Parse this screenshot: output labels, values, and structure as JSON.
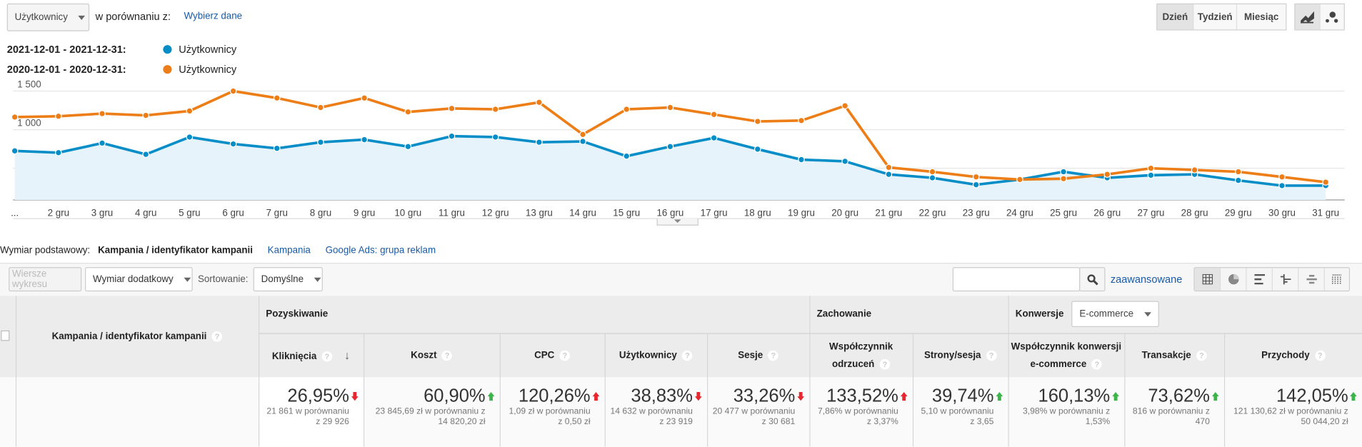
{
  "header": {
    "metric_select": "Użytkownicy",
    "compare_label": "w porównaniu z:",
    "choose_data": "Wybierz dane",
    "period_buttons": [
      "Dzień",
      "Tydzień",
      "Miesiąc"
    ],
    "active_period": "Dzień"
  },
  "legend": [
    {
      "range": "2021-12-01 - 2021-12-31:",
      "label": "Użytkownicy",
      "color": "#058dc7"
    },
    {
      "range": "2020-12-01 - 2020-12-31:",
      "label": "Użytkownicy",
      "color": "#ed7e17"
    }
  ],
  "chart_data": {
    "type": "line",
    "title": "",
    "xlabel": "",
    "ylabel": "Użytkownicy",
    "ylim": [
      0,
      1500
    ],
    "yticks": [
      "1 500",
      "1 000",
      "500"
    ],
    "ytick_values": [
      1500,
      1000,
      500
    ],
    "x": [
      "...",
      "2 gru",
      "3 gru",
      "4 gru",
      "5 gru",
      "6 gru",
      "7 gru",
      "8 gru",
      "9 gru",
      "10 gru",
      "11 gru",
      "12 gru",
      "13 gru",
      "14 gru",
      "15 gru",
      "16 gru",
      "17 gru",
      "18 gru",
      "19 gru",
      "20 gru",
      "21 gru",
      "22 gru",
      "23 gru",
      "24 gru",
      "25 gru",
      "26 gru",
      "27 gru",
      "28 gru",
      "29 gru",
      "30 gru",
      "31 gru"
    ],
    "series": [
      {
        "name": "2021-12-01 - 2021-12-31: Użytkownicy",
        "color": "#058dc7",
        "values": [
          725,
          702,
          826,
          680,
          904,
          815,
          758,
          837,
          871,
          781,
          916,
          904,
          837,
          848,
          657,
          781,
          893,
          747,
          612,
          590,
          421,
          376,
          287,
          354,
          455,
          376,
          410,
          421,
          343,
          275,
          275
        ]
      },
      {
        "name": "2020-12-01 - 2020-12-31: Użytkownicy",
        "color": "#ed7e17",
        "values": [
          1163,
          1174,
          1208,
          1185,
          1242,
          1500,
          1410,
          1287,
          1410,
          1230,
          1275,
          1264,
          1354,
          938,
          1264,
          1287,
          1197,
          1107,
          1118,
          1309,
          511,
          455,
          388,
          354,
          365,
          421,
          500,
          478,
          455,
          388,
          320
        ]
      }
    ]
  },
  "dimension": {
    "label": "Wymiar podstawowy:",
    "active": "Kampania / identyfikator kampanii",
    "options": [
      "Kampania",
      "Google Ads: grupa reklam"
    ]
  },
  "toolbar": {
    "plot_rows": "Wiersze wykresu",
    "secondary": "Wymiar dodatkowy",
    "sort_label": "Sortowanie:",
    "sort_value": "Domyślne",
    "search_value": "",
    "advanced": "zaawansowane"
  },
  "table": {
    "dimension_header": "Kampania / identyfikator kampanii",
    "groups": [
      "Pozyskiwanie",
      "Zachowanie",
      "Konwersje"
    ],
    "conv_select": "E-commerce",
    "columns": [
      {
        "name": "Kliknięcia",
        "pct": "26,95%",
        "dir": "down",
        "good": false,
        "detail": "21 861 w porównaniu z 29 926"
      },
      {
        "name": "Koszt",
        "pct": "60,90%",
        "dir": "up",
        "good": true,
        "detail": "23 845,69 zł w porównaniu z 14 820,20 zł"
      },
      {
        "name": "CPC",
        "pct": "120,26%",
        "dir": "up",
        "good": false,
        "detail": "1,09 zł w porównaniu z 0,50 zł"
      },
      {
        "name": "Użytkownicy",
        "pct": "38,83%",
        "dir": "down",
        "good": false,
        "detail": "14 632 w porównaniu z 23 919"
      },
      {
        "name": "Sesje",
        "pct": "33,26%",
        "dir": "down",
        "good": false,
        "detail": "20 477 w porównaniu z 30 681"
      },
      {
        "name": "Współczynnik odrzuceń",
        "pct": "133,52%",
        "dir": "up",
        "good": false,
        "detail": "7,86% w porównaniu z 3,37%"
      },
      {
        "name": "Strony/sesja",
        "pct": "39,74%",
        "dir": "up",
        "good": true,
        "detail": "5,10 w porównaniu z 3,65"
      },
      {
        "name": "Współczynnik konwersji e-commerce",
        "pct": "160,13%",
        "dir": "up",
        "good": true,
        "detail": "3,98% w porównaniu z 1,53%"
      },
      {
        "name": "Transakcje",
        "pct": "73,62%",
        "dir": "up",
        "good": true,
        "detail": "816 w porównaniu z 470"
      },
      {
        "name": "Przychody",
        "pct": "142,05%",
        "dir": "up",
        "good": true,
        "detail": "121 130,62 zł w porównaniu z 50 044,20 zł"
      }
    ]
  }
}
